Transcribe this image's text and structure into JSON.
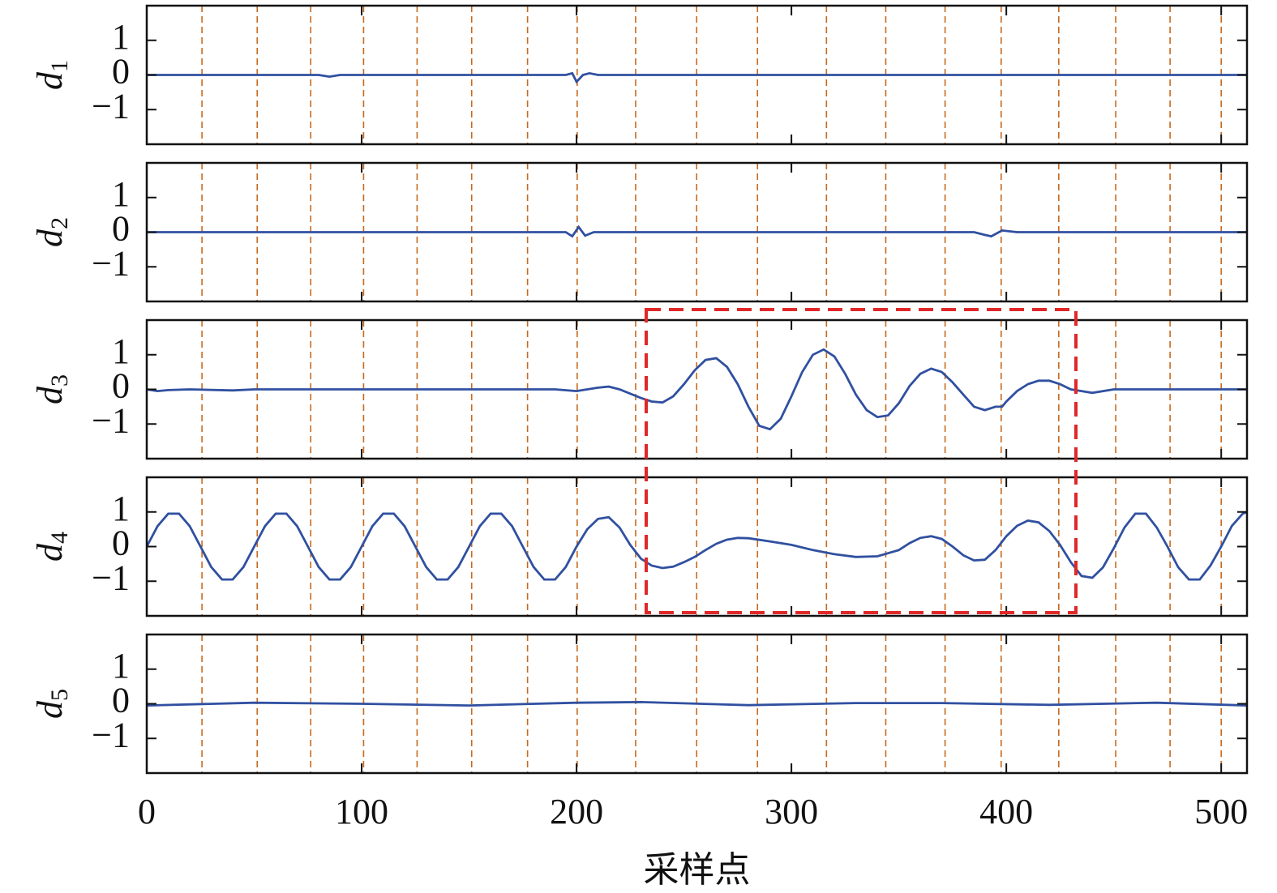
{
  "vlines": [
    25.7,
    51.4,
    76.3,
    100.9,
    125.8,
    151.2,
    177.2,
    200.3,
    227.5,
    255.9,
    284.2,
    316.3,
    343.9,
    371.5,
    397.6,
    424.4,
    450.9,
    476.2,
    500
  ],
  "chart_data": [
    {
      "type": "line",
      "ylabel": "d",
      "ylabel_subscript": "1",
      "color": "#3050a0",
      "x": [
        0,
        80,
        85,
        90,
        195,
        198,
        200,
        203,
        206,
        210,
        512
      ],
      "values": [
        0,
        0,
        -0.05,
        0,
        0,
        0.05,
        -0.2,
        0,
        0.05,
        0,
        0
      ],
      "xlim": [
        0,
        512
      ],
      "ylim": [
        -2,
        2
      ],
      "xticks": [
        0,
        100,
        200,
        300,
        400,
        500
      ],
      "yticks": [
        1,
        0,
        {
          "value": -1,
          "label": "−1"
        }
      ]
    },
    {
      "type": "line",
      "ylabel": "d",
      "ylabel_subscript": "2",
      "color": "#3050a0",
      "x": [
        0,
        195,
        198,
        201,
        204,
        208,
        385,
        390,
        393,
        398,
        405,
        512
      ],
      "values": [
        0,
        0,
        -0.12,
        0.15,
        -0.1,
        0,
        0,
        -0.08,
        -0.12,
        0.05,
        0,
        0
      ],
      "xlim": [
        0,
        512
      ],
      "ylim": [
        -2,
        2
      ],
      "xticks": [
        0,
        100,
        200,
        300,
        400,
        500
      ],
      "yticks": [
        1,
        0,
        {
          "value": -1,
          "label": "−1"
        }
      ]
    },
    {
      "type": "line",
      "ylabel": "d",
      "ylabel_subscript": "3",
      "color": "#3050a0",
      "x": [
        0,
        5,
        10,
        20,
        40,
        50,
        100,
        150,
        190,
        200,
        210,
        215,
        220,
        230,
        235,
        240,
        245,
        250,
        255,
        260,
        265,
        270,
        275,
        280,
        285,
        290,
        295,
        300,
        305,
        310,
        315,
        320,
        325,
        330,
        335,
        340,
        345,
        350,
        355,
        360,
        365,
        370,
        375,
        380,
        385,
        390,
        395,
        398,
        400,
        405,
        410,
        415,
        420,
        425,
        430,
        435,
        440,
        450,
        512
      ],
      "values": [
        0,
        -0.05,
        -0.02,
        0,
        -0.03,
        0,
        0,
        0,
        0,
        -0.05,
        0.05,
        0.08,
        0,
        -0.25,
        -0.35,
        -0.38,
        -0.2,
        0.15,
        0.55,
        0.85,
        0.9,
        0.65,
        0.15,
        -0.5,
        -1.05,
        -1.15,
        -0.85,
        -0.2,
        0.5,
        1.0,
        1.15,
        0.95,
        0.45,
        -0.15,
        -0.6,
        -0.8,
        -0.75,
        -0.4,
        0.1,
        0.45,
        0.6,
        0.5,
        0.2,
        -0.15,
        -0.5,
        -0.6,
        -0.5,
        -0.5,
        -0.35,
        -0.05,
        0.15,
        0.25,
        0.25,
        0.15,
        0,
        -0.05,
        -0.1,
        0,
        0
      ],
      "xlim": [
        0,
        512
      ],
      "ylim": [
        -2,
        2
      ],
      "xticks": [
        0,
        100,
        200,
        300,
        400,
        500
      ],
      "yticks": [
        1,
        0,
        {
          "value": -1,
          "label": "−1"
        }
      ]
    },
    {
      "type": "line",
      "ylabel": "d",
      "ylabel_subscript": "4",
      "color": "#3050a0",
      "x": [
        0,
        5,
        10,
        15,
        20,
        25,
        30,
        35,
        40,
        45,
        50,
        55,
        60,
        65,
        70,
        75,
        80,
        85,
        90,
        95,
        100,
        105,
        110,
        115,
        120,
        125,
        130,
        135,
        140,
        145,
        150,
        155,
        160,
        165,
        170,
        175,
        180,
        185,
        190,
        195,
        200,
        205,
        210,
        215,
        220,
        225,
        230,
        235,
        240,
        245,
        250,
        255,
        260,
        265,
        270,
        275,
        280,
        290,
        300,
        310,
        320,
        330,
        340,
        350,
        355,
        360,
        365,
        370,
        375,
        380,
        385,
        390,
        395,
        400,
        405,
        410,
        415,
        420,
        425,
        430,
        435,
        440,
        445,
        450,
        455,
        460,
        465,
        470,
        475,
        480,
        485,
        490,
        495,
        500,
        505,
        510,
        512
      ],
      "values": [
        0,
        0.59,
        0.95,
        0.95,
        0.59,
        0,
        -0.59,
        -0.95,
        -0.95,
        -0.59,
        0,
        0.59,
        0.95,
        0.95,
        0.59,
        0,
        -0.59,
        -0.95,
        -0.95,
        -0.59,
        0,
        0.59,
        0.95,
        0.95,
        0.59,
        0,
        -0.59,
        -0.95,
        -0.95,
        -0.59,
        0,
        0.59,
        0.95,
        0.95,
        0.59,
        0,
        -0.59,
        -0.95,
        -0.95,
        -0.59,
        0,
        0.5,
        0.8,
        0.85,
        0.55,
        0.05,
        -0.35,
        -0.55,
        -0.62,
        -0.58,
        -0.45,
        -0.3,
        -0.1,
        0.08,
        0.2,
        0.25,
        0.24,
        0.15,
        0.05,
        -0.1,
        -0.22,
        -0.3,
        -0.28,
        -0.1,
        0.1,
        0.25,
        0.3,
        0.22,
        0,
        -0.25,
        -0.4,
        -0.38,
        -0.1,
        0.3,
        0.6,
        0.75,
        0.7,
        0.45,
        0.05,
        -0.45,
        -0.85,
        -0.9,
        -0.6,
        -0.05,
        0.55,
        0.95,
        0.95,
        0.55,
        0,
        -0.6,
        -0.95,
        -0.95,
        -0.55,
        0,
        0.6,
        0.95,
        1.0
      ],
      "xlim": [
        0,
        512
      ],
      "ylim": [
        -2,
        2
      ],
      "xticks": [
        0,
        100,
        200,
        300,
        400,
        500
      ],
      "yticks": [
        1,
        0,
        {
          "value": -1,
          "label": "−1"
        }
      ]
    },
    {
      "type": "line",
      "ylabel": "d",
      "ylabel_subscript": "5",
      "color": "#3050a0",
      "xlabel": "采样点",
      "x": [
        0,
        50,
        100,
        150,
        200,
        230,
        280,
        330,
        370,
        420,
        470,
        512
      ],
      "values": [
        -0.05,
        0.03,
        0,
        -0.05,
        0.03,
        0.05,
        -0.04,
        0.02,
        0.02,
        -0.03,
        0.03,
        -0.05
      ],
      "xlim": [
        0,
        512
      ],
      "ylim": [
        -2,
        2
      ],
      "xticks": [
        0,
        100,
        200,
        300,
        400,
        500
      ],
      "yticks": [
        1,
        0,
        {
          "value": -1,
          "label": "−1"
        }
      ]
    }
  ]
}
